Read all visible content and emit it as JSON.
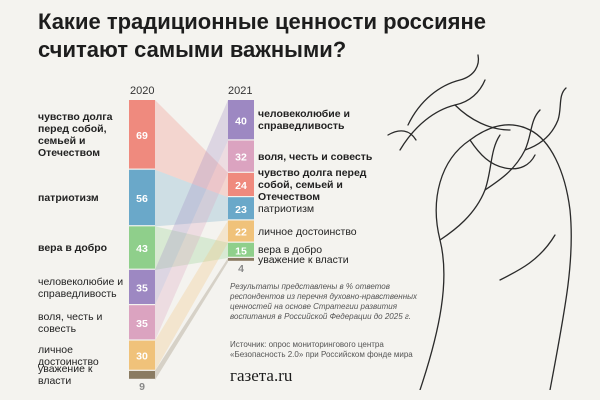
{
  "title": "Какие традиционные ценности россияне считают самыми важными?",
  "note": "Результаты представлены в % ответов респондентов из перечня духовно-нравственных ценностей на основе Стратегии развития воспитания в Российской Федерации до 2025 г.",
  "source": "Источник: опрос мониторингового центра «Безопасность 2.0» при Российском фонде мира",
  "logo": "газета.ru",
  "colors": {
    "duty": "#ef8a7e",
    "patriotism": "#6aa8c9",
    "kindness": "#8fcf8b",
    "humanism": "#9d88c2",
    "will": "#dba3c0",
    "dignity": "#f0c27a",
    "respect": "#8a7b62"
  },
  "labels_2020": {
    "duty": "чувство долга перед собой, семьей и Отечеством",
    "patriotism": "патриотизм",
    "kindness": "вера в добро",
    "humanism": "человеколюбие и справедливость",
    "will": "воля, честь и совесть",
    "dignity": "личное достоинство",
    "respect": "уважение к власти"
  },
  "labels_2021": {
    "humanism": "человеколюбие и справедливость",
    "will": "воля, честь и совесть",
    "duty": "чувство долга перед собой, семьей и Отечеством",
    "patriotism": "патриотизм",
    "dignity": "личное достоинство",
    "kindness": "вера в добро",
    "respect": "уважение к власти"
  },
  "chart_data": {
    "type": "bar",
    "title": "Какие традиционные ценности россияне считают самыми важными?",
    "categories": [
      "2020",
      "2021"
    ],
    "series": [
      {
        "key": "duty",
        "name": "чувство долга перед собой, семьей и Отечеством",
        "values": [
          69,
          24
        ]
      },
      {
        "key": "patriotism",
        "name": "патриотизм",
        "values": [
          56,
          23
        ]
      },
      {
        "key": "kindness",
        "name": "вера в добро",
        "values": [
          43,
          15
        ]
      },
      {
        "key": "humanism",
        "name": "человеколюбие и справедливость",
        "values": [
          35,
          40
        ]
      },
      {
        "key": "will",
        "name": "воля, честь и совесть",
        "values": [
          35,
          32
        ]
      },
      {
        "key": "dignity",
        "name": "личное достоинство",
        "values": [
          30,
          22
        ]
      },
      {
        "key": "respect",
        "name": "уважение к власти",
        "values": [
          9,
          4
        ]
      }
    ],
    "order_2020": [
      "duty",
      "patriotism",
      "kindness",
      "humanism",
      "will",
      "dignity",
      "respect"
    ],
    "order_2021": [
      "humanism",
      "will",
      "duty",
      "patriotism",
      "dignity",
      "kindness",
      "respect"
    ],
    "bold_2020": [
      "duty",
      "patriotism",
      "kindness"
    ],
    "bold_2021": [
      "humanism",
      "will",
      "duty"
    ]
  }
}
